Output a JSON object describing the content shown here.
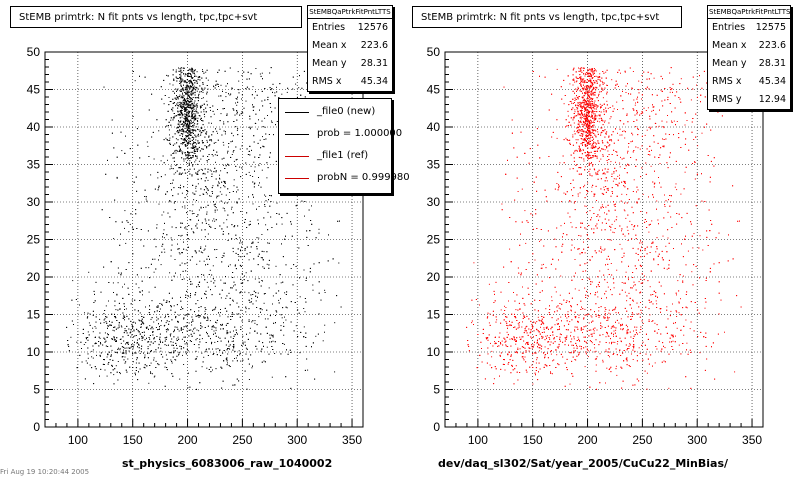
{
  "chart_data": [
    {
      "type": "scatter",
      "title": "StEMB primtrk: N fit pnts vs length, tpc,tpc+svt",
      "xlabel": "st_physics_6083006_raw_1040002",
      "ylabel": "",
      "xlim": [
        70,
        360
      ],
      "ylim": [
        0,
        50
      ],
      "x_ticks": [
        100,
        150,
        200,
        250,
        300,
        350
      ],
      "y_ticks": [
        0,
        5,
        10,
        15,
        20,
        25,
        30,
        35,
        40,
        45,
        50
      ],
      "grid": true,
      "marker_color": "#000000",
      "stats": {
        "name": "StEMBQaPtrkFitPntLTTS",
        "rows": [
          {
            "label": "Entries",
            "value": "12576"
          },
          {
            "label": "Mean x",
            "value": "223.6"
          },
          {
            "label": "Mean y",
            "value": "28.31"
          },
          {
            "label": "RMS x",
            "value": "45.34"
          }
        ]
      },
      "legend": {
        "position": "top-right",
        "entries": [
          {
            "label": "_file0 (new)",
            "color": "#000000"
          },
          {
            "label": "prob = 1.000000",
            "color": "#000000"
          },
          {
            "label": "_file1 (ref)",
            "color": "#cc0000"
          },
          {
            "label": "probN = 0.999980",
            "color": "#cc0000"
          }
        ]
      },
      "density_clusters": [
        {
          "x": 200,
          "y": 42,
          "sx": 7,
          "sy": 3.8,
          "weight": 0.24
        },
        {
          "x": 210,
          "y": 36,
          "sx": 14,
          "sy": 6,
          "weight": 0.08
        },
        {
          "x": 255,
          "y": 40,
          "sx": 30,
          "sy": 5,
          "weight": 0.1
        },
        {
          "x": 150,
          "y": 12,
          "sx": 32,
          "sy": 2.6,
          "weight": 0.16
        },
        {
          "x": 225,
          "y": 12.5,
          "sx": 38,
          "sy": 3,
          "weight": 0.12
        },
        {
          "x": 240,
          "y": 22,
          "sx": 50,
          "sy": 8,
          "weight": 0.2
        },
        {
          "x": 190,
          "y": 28,
          "sx": 45,
          "sy": 12,
          "weight": 0.1
        }
      ]
    },
    {
      "type": "scatter",
      "title": "StEMB primtrk: N fit pnts vs length, tpc,tpc+svt",
      "xlabel": "dev/daq_sl302/Sat/year_2005/CuCu22_MinBias/",
      "ylabel": "",
      "xlim": [
        70,
        360
      ],
      "ylim": [
        0,
        50
      ],
      "x_ticks": [
        100,
        150,
        200,
        250,
        300,
        350
      ],
      "y_ticks": [
        0,
        5,
        10,
        15,
        20,
        25,
        30,
        35,
        40,
        45,
        50
      ],
      "grid": true,
      "marker_color": "#ff0000",
      "stats": {
        "name": "StEMBQaPtrkFitPntLTTS",
        "rows": [
          {
            "label": "Entries",
            "value": "12575"
          },
          {
            "label": "Mean x",
            "value": "223.6"
          },
          {
            "label": "Mean y",
            "value": "28.31"
          },
          {
            "label": "RMS x",
            "value": "45.34"
          },
          {
            "label": "RMS y",
            "value": "12.94"
          }
        ]
      },
      "density_clusters": [
        {
          "x": 200,
          "y": 42,
          "sx": 7,
          "sy": 3.8,
          "weight": 0.24
        },
        {
          "x": 210,
          "y": 36,
          "sx": 14,
          "sy": 6,
          "weight": 0.08
        },
        {
          "x": 255,
          "y": 40,
          "sx": 30,
          "sy": 5,
          "weight": 0.1
        },
        {
          "x": 150,
          "y": 12,
          "sx": 32,
          "sy": 2.6,
          "weight": 0.16
        },
        {
          "x": 225,
          "y": 12.5,
          "sx": 38,
          "sy": 3,
          "weight": 0.12
        },
        {
          "x": 240,
          "y": 22,
          "sx": 50,
          "sy": 8,
          "weight": 0.2
        },
        {
          "x": 190,
          "y": 28,
          "sx": 45,
          "sy": 12,
          "weight": 0.1
        }
      ]
    }
  ],
  "footer": "Fri Aug 19 10:20:44 2005"
}
